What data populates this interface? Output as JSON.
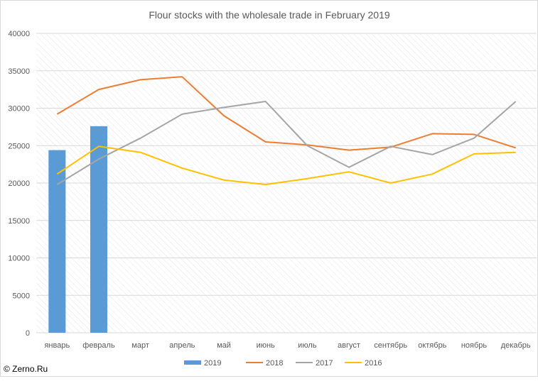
{
  "chart_data": {
    "type": "bar+line",
    "title": "Flour stocks with the wholesale trade in February 2019",
    "categories": [
      "январь",
      "февраль",
      "март",
      "апрель",
      "май",
      "июнь",
      "июль",
      "август",
      "сентябрь",
      "октябрь",
      "ноябрь",
      "декабрь"
    ],
    "ylim": [
      0,
      40000
    ],
    "yticks": [
      0,
      5000,
      10000,
      15000,
      20000,
      25000,
      30000,
      35000,
      40000
    ],
    "grid": true,
    "legend_position": "bottom",
    "series": [
      {
        "name": "2019",
        "type": "bar",
        "color": "#5b9bd5",
        "values": [
          24400,
          27600,
          null,
          null,
          null,
          null,
          null,
          null,
          null,
          null,
          null,
          null
        ]
      },
      {
        "name": "2018",
        "type": "line",
        "color": "#ed7d31",
        "values": [
          29200,
          32500,
          33800,
          34200,
          29000,
          25500,
          25100,
          24400,
          24800,
          26600,
          26500,
          24700
        ]
      },
      {
        "name": "2017",
        "type": "line",
        "color": "#a5a5a5",
        "values": [
          19800,
          23200,
          26000,
          29200,
          30100,
          30900,
          25000,
          22100,
          24900,
          23800,
          26000,
          30900
        ]
      },
      {
        "name": "2016",
        "type": "line",
        "color": "#ffc000",
        "values": [
          21200,
          24900,
          24100,
          22000,
          20400,
          19800,
          20600,
          21500,
          20000,
          21200,
          23900,
          24100
        ]
      }
    ]
  },
  "credit": "© Zerno.Ru"
}
